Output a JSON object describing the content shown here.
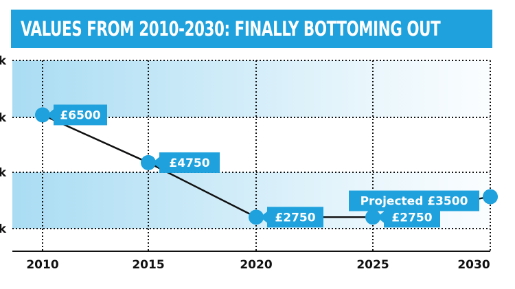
{
  "title": "VALUES FROM 2010-2030: FINALLY BOTTOMING OUT",
  "colors": {
    "accent": "#1ea1dc",
    "band": "#a9dcf3",
    "line": "#111111"
  },
  "chart_data": {
    "type": "line",
    "title": "VALUES FROM 2010-2030: FINALLY BOTTOMING OUT",
    "xlabel": "",
    "ylabel": "",
    "x": [
      2010,
      2015,
      2020,
      2025,
      2030
    ],
    "xtick_labels": [
      "2010",
      "2015",
      "2020",
      "2025",
      "2030"
    ],
    "values": [
      6500,
      4750,
      2750,
      2750,
      3500
    ],
    "data_labels": [
      "£6500",
      "£4750",
      "£2750",
      "£2750",
      "Projected £3500"
    ],
    "ytick_labels": [
      "k",
      "k",
      "k",
      "k"
    ],
    "ylim": [
      1500,
      8500
    ],
    "grid": true
  }
}
